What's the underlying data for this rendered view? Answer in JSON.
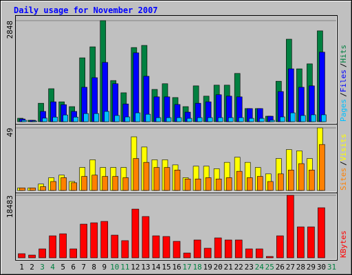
{
  "chart_data": [
    {
      "type": "bar",
      "title": "Daily usage for November 2007",
      "legend_separator": "/",
      "ylim": [
        0,
        2848
      ],
      "yticks": [
        2848
      ],
      "series": [
        {
          "name": "Hits",
          "color": "#008040",
          "values": [
            97,
            40,
            520,
            930,
            560,
            425,
            1800,
            2110,
            2848,
            1160,
            815,
            2090,
            2150,
            910,
            1070,
            680,
            425,
            1010,
            720,
            1030,
            1030,
            1360,
            370,
            370,
            155,
            1140,
            2325,
            1490,
            1630,
            2560,
            null
          ]
        },
        {
          "name": "Files",
          "color": "#0000ff",
          "values": [
            77,
            40,
            290,
            560,
            480,
            290,
            970,
            1240,
            1670,
            1070,
            500,
            1940,
            1280,
            700,
            700,
            485,
            270,
            520,
            560,
            760,
            720,
            700,
            370,
            370,
            155,
            850,
            1490,
            970,
            1010,
            1960,
            null
          ]
        },
        {
          "name": "Pages",
          "color": "#00c0ff",
          "values": [
            40,
            20,
            100,
            130,
            190,
            130,
            230,
            230,
            290,
            175,
            135,
            250,
            210,
            115,
            115,
            115,
            95,
            115,
            115,
            115,
            115,
            115,
            95,
            95,
            40,
            135,
            250,
            175,
            195,
            195,
            null
          ]
        }
      ]
    },
    {
      "type": "bar",
      "legend_separator": "/",
      "ylim": [
        0,
        49
      ],
      "yticks": [
        49
      ],
      "series": [
        {
          "name": "Visits",
          "color": "#ffff00",
          "values": [
            2,
            2,
            5,
            10,
            12,
            7,
            18,
            24,
            18,
            18,
            18,
            42,
            34,
            24,
            24,
            20,
            10,
            19,
            19,
            17,
            22,
            26,
            22,
            18,
            13,
            25,
            32,
            31,
            25,
            49,
            null
          ]
        },
        {
          "name": "Sites",
          "color": "#ff8000",
          "values": [
            2,
            2,
            3,
            7,
            10,
            6,
            11,
            12,
            11,
            11,
            10,
            25,
            22,
            18,
            18,
            16,
            9,
            9,
            10,
            9,
            10,
            15,
            10,
            11,
            7,
            13,
            16,
            21,
            16,
            36,
            null
          ]
        }
      ]
    },
    {
      "type": "bar",
      "ylim": [
        0,
        18483
      ],
      "yticks": [
        18483
      ],
      "categories": [
        "1",
        "2",
        "3",
        "4",
        "5",
        "6",
        "7",
        "8",
        "9",
        "10",
        "11",
        "12",
        "13",
        "14",
        "15",
        "16",
        "17",
        "18",
        "19",
        "20",
        "21",
        "22",
        "23",
        "24",
        "25",
        "26",
        "27",
        "28",
        "29",
        "30",
        "31"
      ],
      "label_colors": [
        "#000000",
        "#000000",
        "#008040",
        "#008040",
        "#000000",
        "#000000",
        "#000000",
        "#000000",
        "#000000",
        "#008040",
        "#008040",
        "#000000",
        "#000000",
        "#000000",
        "#000000",
        "#000000",
        "#008040",
        "#008040",
        "#000000",
        "#000000",
        "#000000",
        "#000000",
        "#000000",
        "#008040",
        "#008040",
        "#000000",
        "#000000",
        "#000000",
        "#000000",
        "#000000",
        "#008040"
      ],
      "series": [
        {
          "name": "KBytes",
          "color": "#ff0000",
          "values": [
            1220,
            810,
            2640,
            6500,
            7100,
            2640,
            9950,
            10350,
            10760,
            6700,
            5080,
            14400,
            12200,
            6500,
            6300,
            4870,
            1420,
            5280,
            2840,
            5890,
            5280,
            5280,
            2640,
            2640,
            400,
            6500,
            18483,
            9140,
            9140,
            14800,
            null
          ]
        }
      ]
    }
  ]
}
